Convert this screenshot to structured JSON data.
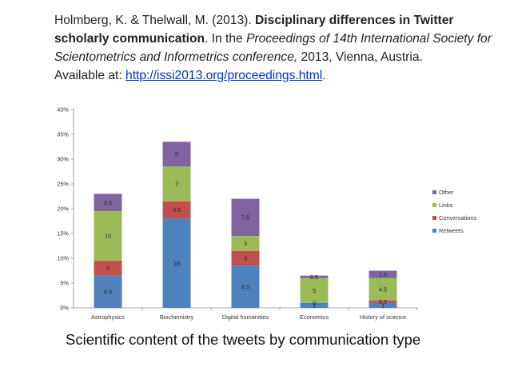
{
  "citation": {
    "authors": "Holmberg, K. & Thelwall, M. (2013). ",
    "title_bold": "Disciplinary differences in Twitter scholarly communication",
    "text_mid": ". In the ",
    "proceedings_italic": "Proceedings of 14th International Society for Scientometrics and Informetrics conference,",
    "text_after": " 2013, Vienna, Austria.",
    "available_prefix": "Available at: ",
    "link_text": "http://issi2013.org/proceedings.html",
    "link_suffix": "."
  },
  "caption": "Scientific content of the tweets by communication type",
  "chart_data": {
    "type": "bar",
    "stacked": true,
    "title": "",
    "xlabel": "",
    "ylabel": "",
    "ylim": [
      0,
      40
    ],
    "y_ticks": [
      "0%",
      "5%",
      "10%",
      "15%",
      "20%",
      "25%",
      "30%",
      "35%",
      "40%"
    ],
    "categories": [
      "Astrophysics",
      "Biochemistry",
      "Digital humanities",
      "Economics",
      "History of science"
    ],
    "series": [
      {
        "name": "Retweets",
        "color": "#4F81BD",
        "values": [
          6.5,
          18,
          8.5,
          1,
          1
        ]
      },
      {
        "name": "Conversations",
        "color": "#C0504D",
        "values": [
          3,
          3.5,
          3,
          0,
          0.5
        ]
      },
      {
        "name": "Links",
        "color": "#9BBB59",
        "values": [
          10,
          7,
          3,
          5,
          4.5
        ]
      },
      {
        "name": "Other",
        "color": "#8064A2",
        "values": [
          3.5,
          5,
          7.5,
          0.5,
          1.5
        ]
      }
    ],
    "legend_position": "right"
  }
}
